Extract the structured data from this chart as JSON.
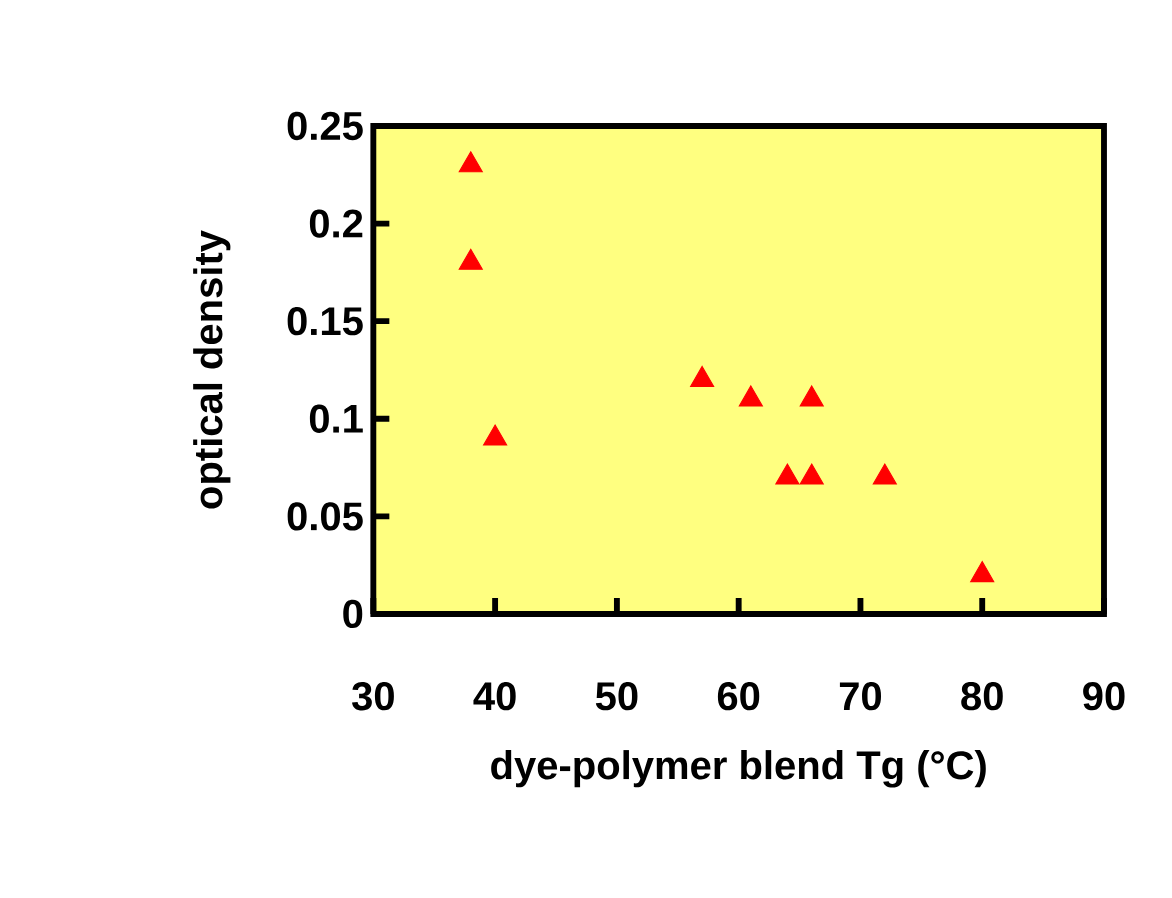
{
  "chart_data": {
    "type": "scatter",
    "xlabel": "dye-polymer blend Tg (°C)",
    "ylabel": "optical density",
    "series": [
      {
        "color": "#ff0000",
        "x": [
          38,
          38,
          40,
          57,
          61,
          66,
          64,
          66,
          72,
          80
        ],
        "values": [
          0.23,
          0.18,
          0.09,
          0.12,
          0.11,
          0.11,
          0.07,
          0.07,
          0.07,
          0.02
        ]
      }
    ],
    "xlim": [
      30,
      90
    ],
    "ylim": [
      0,
      0.25
    ],
    "xticks": [
      30,
      40,
      50,
      60,
      70,
      80,
      90
    ],
    "yticks": [
      0,
      0.05,
      0.1,
      0.15,
      0.2,
      0.25
    ],
    "marker": "triangle",
    "grid": false
  }
}
